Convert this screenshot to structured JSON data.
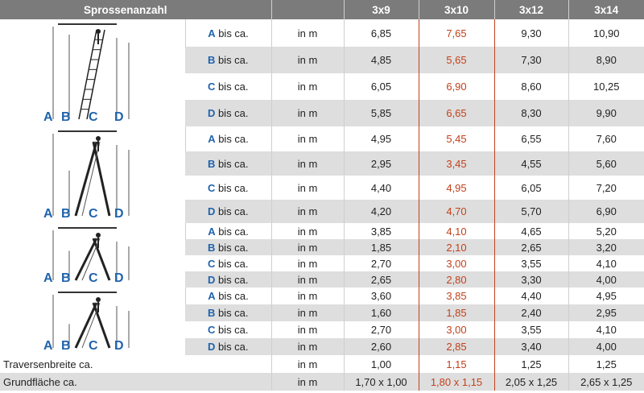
{
  "header": {
    "title": "Sprossenanzahl",
    "cols": [
      "3x9",
      "3x10",
      "3x12",
      "3x14"
    ]
  },
  "unit": "in m",
  "suffix": "bis ca.",
  "letters": [
    "A",
    "B",
    "C",
    "D"
  ],
  "groups": [
    {
      "rows": [
        [
          "6,85",
          "7,65",
          "9,30",
          "10,90"
        ],
        [
          "4,85",
          "5,65",
          "7,30",
          "8,90"
        ],
        [
          "6,05",
          "6,90",
          "8,60",
          "10,25"
        ],
        [
          "5,85",
          "6,65",
          "8,30",
          "9,90"
        ]
      ]
    },
    {
      "rows": [
        [
          "4,95",
          "5,45",
          "6,55",
          "7,60"
        ],
        [
          "2,95",
          "3,45",
          "4,55",
          "5,60"
        ],
        [
          "4,40",
          "4,95",
          "6,05",
          "7,20"
        ],
        [
          "4,20",
          "4,70",
          "5,70",
          "6,90"
        ]
      ]
    },
    {
      "rows": [
        [
          "3,85",
          "4,10",
          "4,65",
          "5,20"
        ],
        [
          "1,85",
          "2,10",
          "2,65",
          "3,20"
        ],
        [
          "2,70",
          "3,00",
          "3,55",
          "4,10"
        ],
        [
          "2,65",
          "2,80",
          "3,30",
          "4,00"
        ]
      ]
    },
    {
      "rows": [
        [
          "3,60",
          "3,85",
          "4,40",
          "4,95"
        ],
        [
          "1,60",
          "1,85",
          "2,40",
          "2,95"
        ],
        [
          "2,70",
          "3,00",
          "3,55",
          "4,10"
        ],
        [
          "2,60",
          "2,85",
          "3,40",
          "4,00"
        ]
      ]
    }
  ],
  "footer": [
    {
      "label": "Traversenbreite ca.",
      "unit": "in m",
      "values": [
        "1,00",
        "1,15",
        "1,25",
        "1,25"
      ]
    },
    {
      "label": "Grundfläche ca.",
      "unit": "in m",
      "values": [
        "1,70 x 1,00",
        "1,80 x 1,15",
        "2,05 x 1,25",
        "2,65 x 1,25"
      ]
    }
  ],
  "colors": {
    "header_bg": "#7b7b7b",
    "letter_blue": "#1f63ad",
    "highlight": "#c2411c",
    "row_gray": "#dedede"
  }
}
